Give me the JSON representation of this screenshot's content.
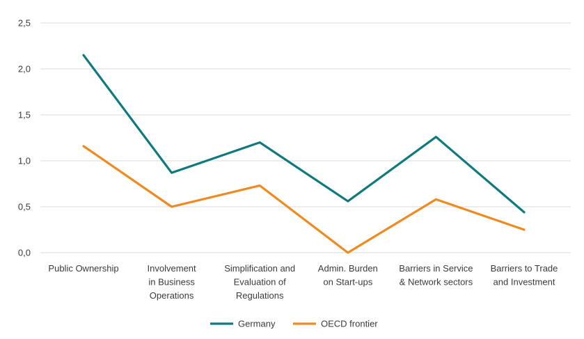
{
  "chart_data": {
    "type": "line",
    "categories": [
      [
        "Public Ownership"
      ],
      [
        "Involvement",
        "in Business",
        "Operations"
      ],
      [
        "Simplification and",
        "Evaluation of",
        "Regulations"
      ],
      [
        "Admin. Burden",
        "on Start-ups"
      ],
      [
        "Barriers in Service",
        "& Network sectors"
      ],
      [
        "Barriers to Trade",
        "and Investment"
      ]
    ],
    "series": [
      {
        "name": "Germany",
        "color": "#0f7a7c",
        "values": [
          2.15,
          0.87,
          1.2,
          0.56,
          1.26,
          0.44
        ]
      },
      {
        "name": "OECD frontier",
        "color": "#ee8a1f",
        "values": [
          1.16,
          0.5,
          0.73,
          0.0,
          0.58,
          0.25
        ]
      }
    ],
    "ylim": [
      0,
      2.5
    ],
    "yticks": [
      "0,0",
      "0,5",
      "1,0",
      "1,5",
      "2,0",
      "2,5"
    ],
    "ytick_values": [
      0,
      0.5,
      1.0,
      1.5,
      2.0,
      2.5
    ],
    "grid": true,
    "legend": "bottom-center",
    "title": "",
    "xlabel": "",
    "ylabel": ""
  }
}
